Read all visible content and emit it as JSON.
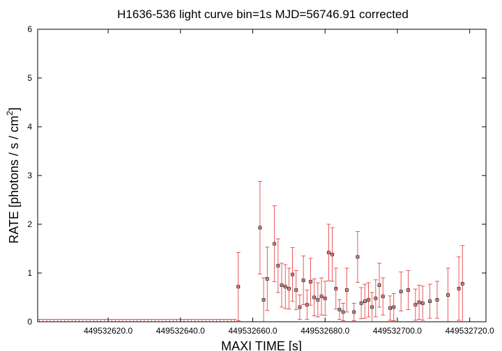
{
  "chart_data": {
    "type": "line",
    "title": "H1636-536 light curve bin=1s MJD=56746.91 corrected",
    "xlabel": "MAXI TIME [s]",
    "ylabel": "RATE [photons / s / cm2]",
    "ylabel_main": "RATE [photons / s / cm",
    "ylabel_sup": "2",
    "ylabel_tail": "]",
    "xlim": [
      449532600.5,
      449532724.5
    ],
    "ylim": [
      0,
      6
    ],
    "xticks": [
      449532620,
      449532640,
      449532660,
      449532680,
      449532700,
      449532720
    ],
    "xtick_labels": [
      "449532620.0",
      "449532640.0",
      "449532660.0",
      "449532680.0",
      "449532700.0",
      "449532720.0"
    ],
    "yticks": [
      0,
      1,
      2,
      3,
      4,
      5,
      6
    ],
    "ytick_labels": [
      "0",
      "1",
      "2",
      "3",
      "4",
      "5",
      "6"
    ],
    "grid": false,
    "colors": {
      "series": "#e03030",
      "axes": "#000000"
    },
    "series": [
      {
        "start": 449532601,
        "step": 1,
        "values": [
          0,
          0,
          0,
          0,
          0,
          0,
          0,
          0,
          0,
          0,
          0,
          0,
          0,
          0,
          0,
          0,
          0,
          0,
          0,
          0,
          0,
          0,
          0,
          0,
          0,
          0,
          0,
          0,
          0,
          0,
          0,
          0,
          0,
          0,
          0,
          0,
          0,
          0,
          0,
          0,
          0,
          0,
          0,
          0,
          0,
          0,
          0,
          0,
          0,
          0,
          0,
          0,
          0,
          0,
          0,
          0.72,
          0,
          0,
          0,
          0,
          0,
          1.93,
          0.45,
          0.88,
          0,
          1.6,
          1.15,
          0.75,
          0.72,
          0.68,
          0.97,
          0.65,
          0.3,
          0.85,
          0.35,
          0.82,
          0.5,
          0.45,
          0.52,
          0.48,
          1.42,
          1.38,
          0.68,
          0.25,
          0.2,
          0.65,
          0,
          0.2,
          1.33,
          0.38,
          0.42,
          0.45,
          0.3,
          0.48,
          0.75,
          0.52,
          0,
          0.28,
          0.3,
          0,
          0.62,
          0,
          0.65,
          0,
          0.35,
          0.4,
          0.38,
          0,
          0.42,
          0,
          0.45,
          0,
          0,
          0.55,
          0,
          0,
          0.68,
          0.78,
          0
        ],
        "errors": [
          0.05,
          0.05,
          0.05,
          0.05,
          0.05,
          0.05,
          0.05,
          0.05,
          0.05,
          0.05,
          0.05,
          0.05,
          0.05,
          0.05,
          0.05,
          0.05,
          0.05,
          0.05,
          0.05,
          0.05,
          0.05,
          0.05,
          0.05,
          0.05,
          0.05,
          0.05,
          0.05,
          0.05,
          0.05,
          0.05,
          0.05,
          0.05,
          0.05,
          0.05,
          0.05,
          0.05,
          0.05,
          0.05,
          0.05,
          0.05,
          0.05,
          0.05,
          0.05,
          0.05,
          0.05,
          0.05,
          0.05,
          0.05,
          0.05,
          0.05,
          0.05,
          0.05,
          0.05,
          0.05,
          0.05,
          0.7,
          0,
          0,
          0,
          0,
          0,
          0.95,
          0.45,
          0.65,
          0,
          0.78,
          0.55,
          0.45,
          0.45,
          0.42,
          0.55,
          0.4,
          0.25,
          0.5,
          0.3,
          0.48,
          0.38,
          0.35,
          0.38,
          0.35,
          0.58,
          0.55,
          0.42,
          0.2,
          0.18,
          0.45,
          0,
          0.18,
          0.52,
          0.32,
          0.35,
          0.35,
          0.3,
          0.38,
          0.45,
          0.38,
          0,
          0.25,
          0.28,
          0,
          0.4,
          0,
          0.4,
          0,
          0.32,
          0.35,
          0.35,
          0,
          0.35,
          0,
          0.38,
          0,
          0,
          0.55,
          0,
          0,
          0.65,
          0.78,
          0
        ]
      }
    ]
  }
}
